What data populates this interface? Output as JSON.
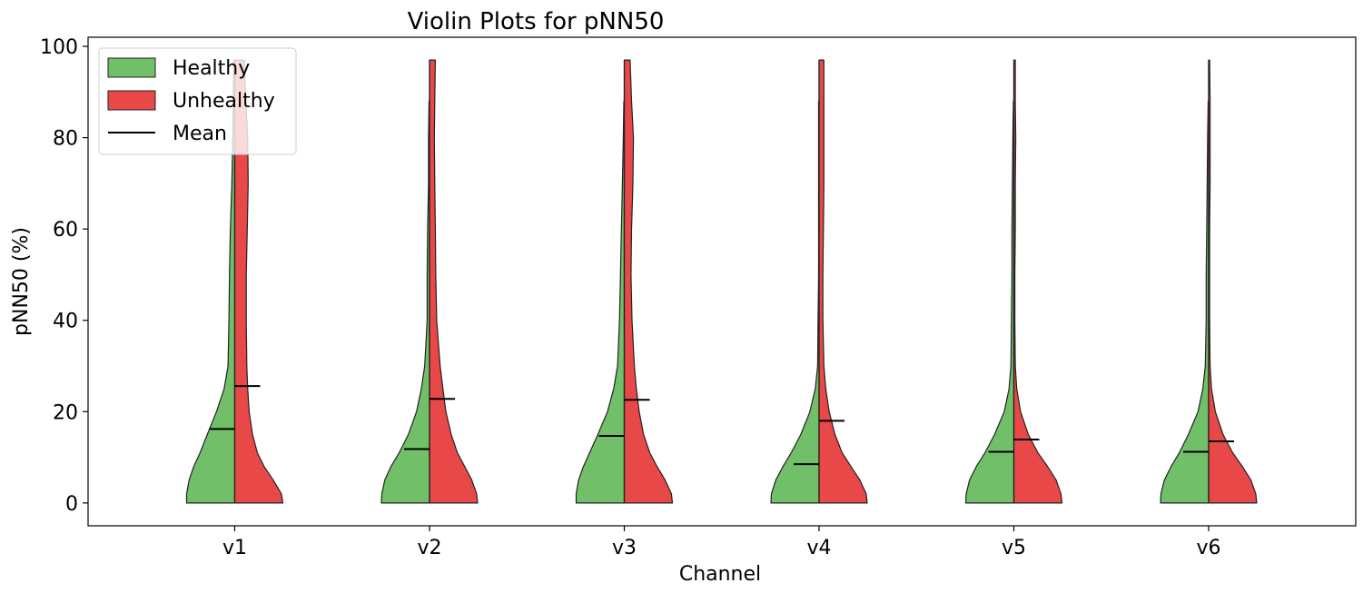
{
  "chart_data": {
    "type": "violin",
    "title": "Violin Plots for pNN50",
    "xlabel": "Channel",
    "ylabel": "pNN50 (%)",
    "categories": [
      "v1",
      "v2",
      "v3",
      "v4",
      "v5",
      "v6"
    ],
    "ylim": [
      -5,
      102
    ],
    "yticks": [
      0,
      20,
      40,
      60,
      80,
      100
    ],
    "grid": false,
    "legend": {
      "position": "upper-left",
      "entries": [
        {
          "label": "Healthy",
          "kind": "patch",
          "color": "#72bf6a"
        },
        {
          "label": "Unhealthy",
          "kind": "patch",
          "color": "#e84848"
        },
        {
          "label": "Mean",
          "kind": "line",
          "color": "#000000"
        }
      ]
    },
    "colors": {
      "healthy": "#72bf6a",
      "unhealthy": "#e84848",
      "edge": "#222222",
      "mean": "#000000"
    },
    "series": [
      {
        "name": "Healthy",
        "side": "left",
        "means": [
          16.2,
          11.8,
          14.7,
          8.5,
          11.2,
          11.2
        ],
        "max": [
          97,
          88,
          88,
          88,
          88,
          88
        ],
        "density_y": [
          0,
          2,
          5,
          8,
          11,
          15,
          20,
          25,
          30,
          40,
          50,
          60,
          70,
          80,
          88,
          97
        ],
        "density_width": [
          [
            1.0,
            1.0,
            0.95,
            0.85,
            0.72,
            0.57,
            0.38,
            0.22,
            0.14,
            0.12,
            0.11,
            0.09,
            0.06,
            0.04,
            0.03,
            0.02
          ],
          [
            1.0,
            0.99,
            0.93,
            0.8,
            0.63,
            0.44,
            0.27,
            0.17,
            0.1,
            0.05,
            0.05,
            0.04,
            0.02,
            0.02,
            0.01,
            0
          ],
          [
            1.0,
            1.0,
            0.95,
            0.85,
            0.72,
            0.55,
            0.35,
            0.22,
            0.14,
            0.1,
            0.08,
            0.06,
            0.04,
            0.02,
            0.01,
            0
          ],
          [
            1.0,
            0.99,
            0.9,
            0.75,
            0.58,
            0.38,
            0.19,
            0.08,
            0.03,
            0.02,
            0.01,
            0.01,
            0.01,
            0.01,
            0.01,
            0
          ],
          [
            1.0,
            0.99,
            0.92,
            0.78,
            0.6,
            0.4,
            0.2,
            0.1,
            0.06,
            0.05,
            0.04,
            0.04,
            0.03,
            0.02,
            0.01,
            0
          ],
          [
            1.0,
            0.99,
            0.92,
            0.78,
            0.61,
            0.42,
            0.22,
            0.12,
            0.07,
            0.05,
            0.05,
            0.04,
            0.03,
            0.02,
            0.01,
            0
          ]
        ]
      },
      {
        "name": "Unhealthy",
        "side": "right",
        "means": [
          25.6,
          22.8,
          22.6,
          18.0,
          13.9,
          13.5
        ],
        "max": [
          97,
          97,
          97,
          97,
          97,
          97
        ],
        "density_y": [
          0,
          2,
          5,
          8,
          11,
          15,
          20,
          25,
          30,
          40,
          50,
          60,
          70,
          80,
          88,
          97
        ],
        "density_width": [
          [
            1.0,
            0.97,
            0.8,
            0.61,
            0.47,
            0.37,
            0.3,
            0.27,
            0.25,
            0.24,
            0.24,
            0.26,
            0.28,
            0.27,
            0.23,
            0.2
          ],
          [
            1.0,
            0.98,
            0.88,
            0.73,
            0.58,
            0.45,
            0.34,
            0.28,
            0.22,
            0.15,
            0.13,
            0.12,
            0.11,
            0.1,
            0.11,
            0.12
          ],
          [
            1.0,
            0.98,
            0.85,
            0.68,
            0.53,
            0.4,
            0.31,
            0.25,
            0.21,
            0.16,
            0.14,
            0.15,
            0.18,
            0.19,
            0.15,
            0.12
          ],
          [
            1.0,
            0.98,
            0.85,
            0.66,
            0.48,
            0.33,
            0.21,
            0.14,
            0.1,
            0.08,
            0.08,
            0.09,
            0.1,
            0.1,
            0.1,
            0.1
          ],
          [
            1.0,
            0.98,
            0.88,
            0.7,
            0.5,
            0.3,
            0.14,
            0.06,
            0.03,
            0.02,
            0.02,
            0.03,
            0.03,
            0.04,
            0.03,
            0.03
          ],
          [
            1.0,
            0.98,
            0.88,
            0.7,
            0.5,
            0.3,
            0.14,
            0.06,
            0.03,
            0.02,
            0.02,
            0.02,
            0.03,
            0.03,
            0.03,
            0.02
          ]
        ]
      }
    ]
  }
}
